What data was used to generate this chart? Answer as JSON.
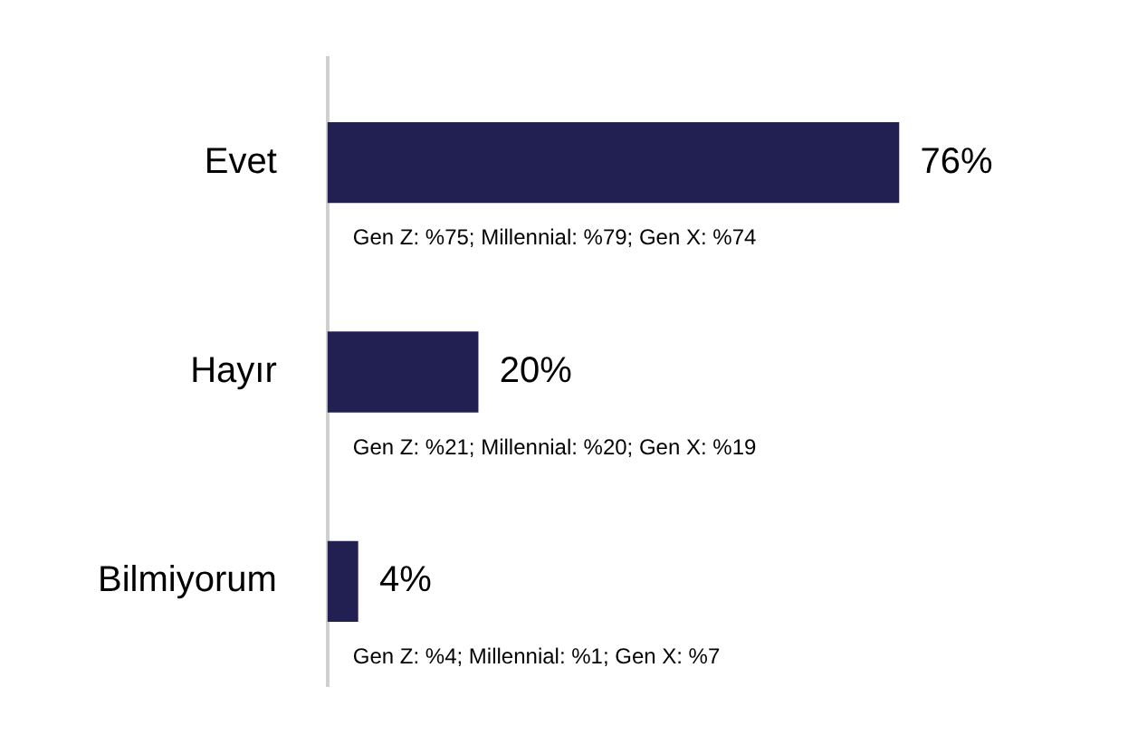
{
  "chart_data": {
    "type": "bar",
    "orientation": "horizontal",
    "categories": [
      "Evet",
      "Hayır",
      "Bilmiyorum"
    ],
    "values": [
      76,
      20,
      4
    ],
    "color": "#221f52",
    "value_labels": [
      "76%",
      "20%",
      "4%"
    ],
    "annotations": [
      "Gen Z: %75; Millennial: %79; Gen X: %74",
      "Gen Z: %21; Millennial: %20; Gen X: %19",
      "Gen Z: %4; Millennial: %1; Gen X: %7"
    ],
    "legend": false,
    "tick_labels": "y"
  }
}
